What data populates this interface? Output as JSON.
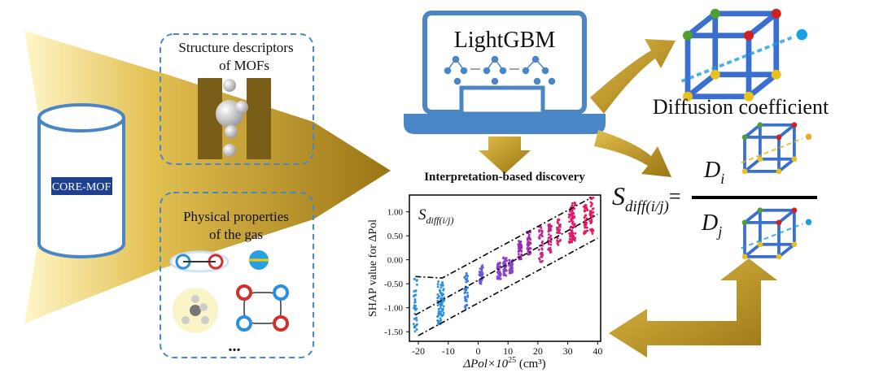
{
  "database": {
    "label": "CORE-MOF"
  },
  "descriptors_box": {
    "title_line1": "Structure descriptors",
    "title_line2": "of MOFs"
  },
  "gas_box": {
    "title_line1": "Physical properties",
    "title_line2": "of the gas",
    "ellipsis": "..."
  },
  "model": {
    "label": "LightGBM"
  },
  "target": {
    "label": "Diffusion coefficient"
  },
  "formula": {
    "lhs": "S",
    "lhs_sub": "diff(i/j)",
    "eq": "=",
    "numerator": "D",
    "numerator_sub": "i",
    "denominator": "D",
    "denominator_sub": "j"
  },
  "colors": {
    "gold": "#b8901a",
    "blue": "#4a86c6",
    "db_label_bg": "#1f3f8f"
  },
  "chart_data": {
    "type": "scatter",
    "title": "Interpretation-based  discovery",
    "annotation": "S",
    "annotation_sub": "diff(i/j)",
    "xlabel": "ΔPol×10",
    "xlabel_sup": "25",
    "xlabel_unit": " (cm³)",
    "ylabel": "SHAP value for ΔPol",
    "xlim": [
      -23,
      41
    ],
    "ylim": [
      -1.7,
      1.35
    ],
    "xticks": [
      -20,
      -10,
      0,
      10,
      20,
      30,
      40
    ],
    "xtick_labels": [
      "-20",
      "-10",
      "0",
      "10",
      "20",
      "30",
      "40"
    ],
    "yticks": [
      1.0,
      0.5,
      0.0,
      -0.5,
      -1.0,
      -1.5
    ],
    "ytick_labels": [
      "1.00",
      "0.50",
      "0.00",
      "-0.50",
      "-1.00",
      "-1.50"
    ],
    "clusters": [
      {
        "x": -21,
        "ymin": -1.55,
        "ymax": -0.35,
        "color": "#2a8fe0"
      },
      {
        "x": -13,
        "ymin": -1.35,
        "ymax": -0.35,
        "color": "#2a8fe0"
      },
      {
        "x": -12,
        "ymin": -1.2,
        "ymax": -0.45,
        "color": "#2a8fe0"
      },
      {
        "x": -4,
        "ymin": -1.05,
        "ymax": -0.25,
        "color": "#3a7ee0"
      },
      {
        "x": 1,
        "ymin": -0.5,
        "ymax": -0.1,
        "color": "#6a5ad8"
      },
      {
        "x": 7,
        "ymin": -0.4,
        "ymax": -0.05,
        "color": "#8a44c8"
      },
      {
        "x": 9,
        "ymin": -0.35,
        "ymax": 0.05,
        "color": "#8a44c8"
      },
      {
        "x": 11,
        "ymin": -0.3,
        "ymax": 0.0,
        "color": "#8a44c8"
      },
      {
        "x": 14,
        "ymin": 0.0,
        "ymax": 0.4,
        "color": "#9a2ab0"
      },
      {
        "x": 17,
        "ymin": 0.1,
        "ymax": 0.6,
        "color": "#a82aa8"
      },
      {
        "x": 21,
        "ymin": -0.05,
        "ymax": 0.7,
        "color": "#c02890"
      },
      {
        "x": 24,
        "ymin": 0.15,
        "ymax": 0.75,
        "color": "#d02080"
      },
      {
        "x": 27,
        "ymin": 0.3,
        "ymax": 0.85,
        "color": "#d82070"
      },
      {
        "x": 31,
        "ymin": 0.35,
        "ymax": 1.1,
        "color": "#e01a68"
      },
      {
        "x": 32,
        "ymin": 0.4,
        "ymax": 1.2,
        "color": "#e01a68"
      },
      {
        "x": 36,
        "ymin": 0.5,
        "ymax": 1.15,
        "color": "#e81860"
      },
      {
        "x": 38,
        "ymin": 0.5,
        "ymax": 1.3,
        "color": "#e81860"
      }
    ],
    "trend_lines": [
      {
        "name": "upper",
        "points": [
          [
            -21,
            -0.35
          ],
          [
            -12,
            -0.38
          ],
          [
            38,
            1.3
          ]
        ]
      },
      {
        "name": "middle",
        "points": [
          [
            -21,
            -1.15
          ],
          [
            40,
            0.95
          ]
        ]
      },
      {
        "name": "lower",
        "points": [
          [
            -20,
            -1.58
          ],
          [
            40,
            0.45
          ]
        ]
      }
    ]
  }
}
